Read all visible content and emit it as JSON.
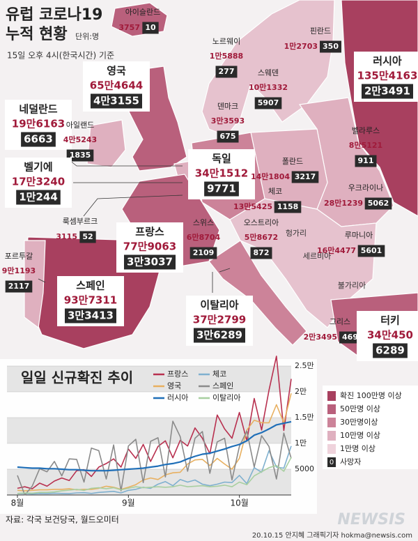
{
  "header": {
    "title_line1": "유럽 코로나19",
    "title_line2": "누적 현황",
    "unit": "단위:명",
    "subtitle": "15일 오후 4시(한국시간) 기준"
  },
  "countries": [
    {
      "name": "아이슬란드",
      "cases": 3757,
      "deaths": 10
    },
    {
      "name": "노르웨이",
      "cases": "1만5888",
      "deaths": 277
    },
    {
      "name": "핀란드",
      "cases": "1만2703",
      "deaths": 350
    },
    {
      "name": "러시아",
      "cases": "135만4163",
      "deaths": "2만3491"
    },
    {
      "name": "영국",
      "cases": "65만4644",
      "deaths": "4만3155"
    },
    {
      "name": "스웨덴",
      "cases": "10만1332",
      "deaths": 5907
    },
    {
      "name": "덴마크",
      "cases": "3만3593",
      "deaths": 675
    },
    {
      "name": "네덜란드",
      "cases": "19만6163",
      "deaths": 6663
    },
    {
      "name": "아일랜드",
      "cases": "4만5243",
      "deaths": 1835
    },
    {
      "name": "벨라루스",
      "cases": "8만5121",
      "deaths": 911
    },
    {
      "name": "벨기에",
      "cases": "17만3240",
      "deaths": "1만244"
    },
    {
      "name": "독일",
      "cases": "34만1512",
      "deaths": 9771
    },
    {
      "name": "폴란드",
      "cases": "14만1804",
      "deaths": 3217
    },
    {
      "name": "체코",
      "cases": "13만5425",
      "deaths": 1158
    },
    {
      "name": "우크라이나",
      "cases": "28만1239",
      "deaths": 5062
    },
    {
      "name": "룩셈부르크",
      "cases": 3115,
      "deaths": 52
    },
    {
      "name": "프랑스",
      "cases": "77만9063",
      "deaths": "3만3037"
    },
    {
      "name": "스위스",
      "cases": "6만8704",
      "deaths": 2109
    },
    {
      "name": "오스트리아",
      "cases": "5만8672",
      "deaths": 872
    },
    {
      "name": "루마니아",
      "cases": "16만4477",
      "deaths": 5601
    },
    {
      "name": "포르투갈",
      "cases": "9만1193",
      "deaths": 2117
    },
    {
      "name": "스페인",
      "cases": "93만7311",
      "deaths": "3만3413"
    },
    {
      "name": "이탈리아",
      "cases": "37만2799",
      "deaths": "3만6289"
    },
    {
      "name": "그리스",
      "cases": "2만3495",
      "deaths": 469
    },
    {
      "name": "터키",
      "cases": "34만450",
      "deaths": 6289
    }
  ],
  "other_places": [
    "헝가리",
    "세르비아",
    "불가리아"
  ],
  "legend": {
    "items": [
      {
        "label": "확진 100만명 이상",
        "color": "#a8405f"
      },
      {
        "label": "50만명 이상",
        "color": "#b9607c"
      },
      {
        "label": "30만명이상",
        "color": "#cc8399"
      },
      {
        "label": "10만명 이상",
        "color": "#dfb0bf"
      },
      {
        "label": "1만명 이상",
        "color": "#efd3dc"
      }
    ],
    "death_marker": "0",
    "death_label": "사망자"
  },
  "chart_data": {
    "type": "line",
    "title": "일일 신규확진 추이",
    "categories": [
      "8월",
      null,
      null,
      null,
      null,
      null,
      null,
      null,
      null,
      null,
      null,
      null,
      null,
      null,
      null,
      "9월",
      null,
      null,
      null,
      null,
      null,
      null,
      null,
      null,
      null,
      null,
      null,
      null,
      null,
      null,
      "10월",
      null,
      null,
      null,
      null,
      null,
      null,
      null
    ],
    "series": [
      {
        "name": "프랑스",
        "color": "#b8304f",
        "values": [
          1300,
          1600,
          1200,
          2300,
          1700,
          2700,
          3300,
          2800,
          4700,
          4900,
          3600,
          5400,
          6100,
          7000,
          5400,
          8900,
          7100,
          9800,
          6500,
          9400,
          10500,
          7200,
          10600,
          9500,
          13000,
          11000,
          8000,
          15500,
          12800,
          11000,
          16000,
          10500,
          18700,
          12600,
          20300,
          26900,
          12500,
          22500
        ]
      },
      {
        "name": "체코",
        "color": "#7fb0cf",
        "values": [
          250,
          300,
          200,
          300,
          250,
          350,
          300,
          250,
          400,
          450,
          300,
          500,
          600,
          700,
          400,
          900,
          1100,
          1500,
          1300,
          2100,
          2600,
          1800,
          3000,
          2500,
          2900,
          2100,
          1800,
          2100,
          2500,
          2400,
          3800,
          2200,
          5300,
          4400,
          8600,
          5400,
          5200,
          9500
        ]
      },
      {
        "name": "영국",
        "color": "#e8b060",
        "values": [
          900,
          800,
          900,
          1000,
          1000,
          1100,
          1100,
          1200,
          1000,
          1100,
          1100,
          1300,
          1700,
          1500,
          1100,
          1500,
          2000,
          2900,
          3300,
          3000,
          3900,
          4300,
          4400,
          6000,
          6800,
          6900,
          5700,
          7100,
          6000,
          5000,
          7100,
          12600,
          14500,
          14000,
          14000,
          17500,
          14000,
          19700
        ]
      },
      {
        "name": "스페인",
        "color": "#8a8a8a",
        "values": [
          3800,
          0,
          1700,
          5100,
          4500,
          6500,
          3700,
          7000,
          6900,
          2500,
          9100,
          8600,
          3100,
          9700,
          800,
          9500,
          10800,
          2400,
          10400,
          11100,
          3500,
          14300,
          11300,
          4600,
          11000,
          12300,
          4200,
          10300,
          11000,
          2900,
          9400,
          12400,
          5400,
          11500,
          9400,
          3100,
          12000,
          7100
        ]
      },
      {
        "name": "러시아",
        "color": "#1f6fb8",
        "values": [
          5400,
          5300,
          5200,
          5200,
          5100,
          5100,
          5000,
          4900,
          4900,
          4800,
          4700,
          4700,
          4700,
          4800,
          4900,
          5000,
          5100,
          5200,
          5400,
          5600,
          5900,
          6100,
          6400,
          7000,
          7500,
          7900,
          8100,
          8500,
          8900,
          9400,
          9800,
          10500,
          11600,
          12100,
          12800,
          13600,
          13900,
          14200
        ]
      },
      {
        "name": "이탈리아",
        "color": "#a8cfa0",
        "values": [
          300,
          400,
          350,
          500,
          500,
          600,
          800,
          950,
          1100,
          900,
          1300,
          1400,
          1200,
          1400,
          1000,
          1300,
          1600,
          1400,
          1500,
          1600,
          1500,
          1600,
          1900,
          1600,
          1700,
          1800,
          1600,
          1700,
          1900,
          1600,
          2500,
          2000,
          3700,
          4500,
          5300,
          5700,
          4600,
          7300
        ]
      }
    ],
    "ylim": [
      0,
      25000
    ],
    "yticks": [
      5000,
      {
        "value": 10000,
        "label": "1만"
      },
      {
        "value": 15000,
        "label": "1.5만"
      },
      {
        "value": 20000,
        "label": "2만"
      },
      {
        "value": 25000,
        "label": "2.5만"
      }
    ],
    "grid": true
  },
  "footer": {
    "source": "자료: 각국 보건당국, 월드오미터",
    "credit": "20.10.15 안지혜 그래픽기자 hokma@newsis.com",
    "logo": "NEWSIS"
  }
}
